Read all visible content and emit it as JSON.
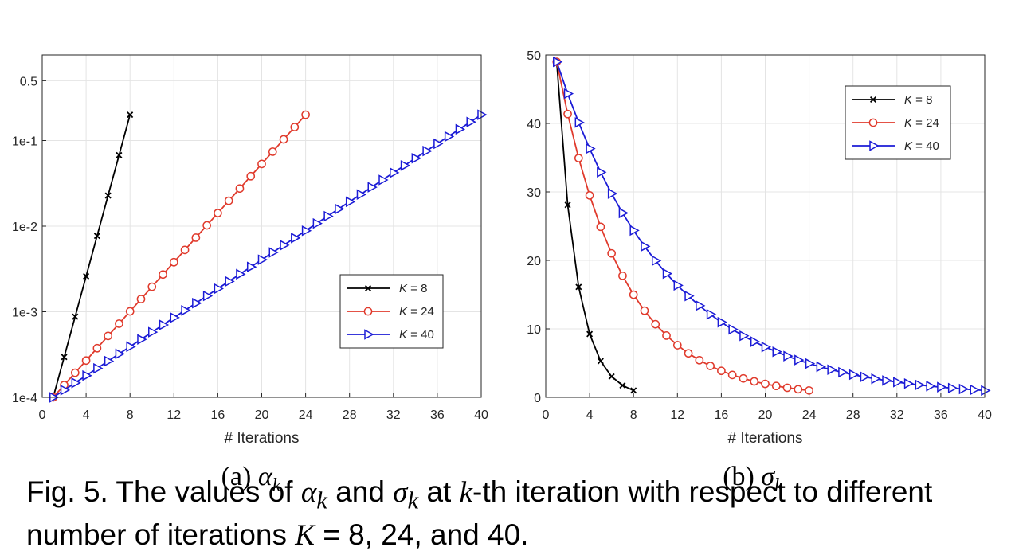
{
  "chart_data": [
    {
      "type": "line",
      "panel": "a",
      "subcaption": {
        "label": "(a)",
        "symbol": "α",
        "subscript": "k"
      },
      "xlabel": "# Iterations",
      "ylabel": "",
      "xlim": [
        0,
        40
      ],
      "xticks": [
        0,
        4,
        8,
        12,
        16,
        20,
        24,
        28,
        32,
        36,
        40
      ],
      "yscale": "log",
      "ylim": [
        0.0001,
        1.0
      ],
      "yticks": [
        0.0001,
        0.001,
        0.01,
        0.1,
        0.5
      ],
      "ytick_labels": [
        "1e-4",
        "1e-3",
        "1e-2",
        "1e-1",
        "0.5"
      ],
      "grid": true,
      "legend_position": "lower-right",
      "series": [
        {
          "name": "K = 8",
          "color": "#000000",
          "marker": "x",
          "x_start": 1,
          "x_end": 8,
          "y_start": 0.0001,
          "y_end": 0.2
        },
        {
          "name": "K = 24",
          "color": "#e03a2c",
          "marker": "circle",
          "x_start": 1,
          "x_end": 24,
          "y_start": 0.0001,
          "y_end": 0.2
        },
        {
          "name": "K = 40",
          "color": "#1b1bd6",
          "marker": "triangle-right",
          "x_start": 1,
          "x_end": 40,
          "y_start": 0.0001,
          "y_end": 0.2
        }
      ]
    },
    {
      "type": "line",
      "panel": "b",
      "subcaption": {
        "label": "(b)",
        "symbol": "σ",
        "subscript": "k"
      },
      "xlabel": "# Iterations",
      "ylabel": "",
      "xlim": [
        0,
        40
      ],
      "xticks": [
        0,
        4,
        8,
        12,
        16,
        20,
        24,
        28,
        32,
        36,
        40
      ],
      "yscale": "linear",
      "ylim": [
        0,
        50
      ],
      "yticks": [
        0,
        10,
        20,
        30,
        40,
        50
      ],
      "grid": true,
      "legend_position": "top-right",
      "series": [
        {
          "name": "K = 8",
          "color": "#000000",
          "marker": "x",
          "x_start": 1,
          "x_end": 8,
          "y_start": 49,
          "y_end": 1
        },
        {
          "name": "K = 24",
          "color": "#e03a2c",
          "marker": "circle",
          "x_start": 1,
          "x_end": 24,
          "y_start": 49,
          "y_end": 1
        },
        {
          "name": "K = 40",
          "color": "#1b1bd6",
          "marker": "triangle-right",
          "x_start": 1,
          "x_end": 40,
          "y_start": 49,
          "y_end": 1
        }
      ]
    }
  ],
  "caption": {
    "prefix": "Fig. 5. The values of ",
    "alpha": "α",
    "and": " and ",
    "sigma": "σ",
    "sub": "k",
    "at": " at ",
    "k": "k",
    "th": "-th iteration with respect to different",
    "line2a": "number of iterations ",
    "K": "K",
    "line2b": " = 8, 24, and 40."
  }
}
